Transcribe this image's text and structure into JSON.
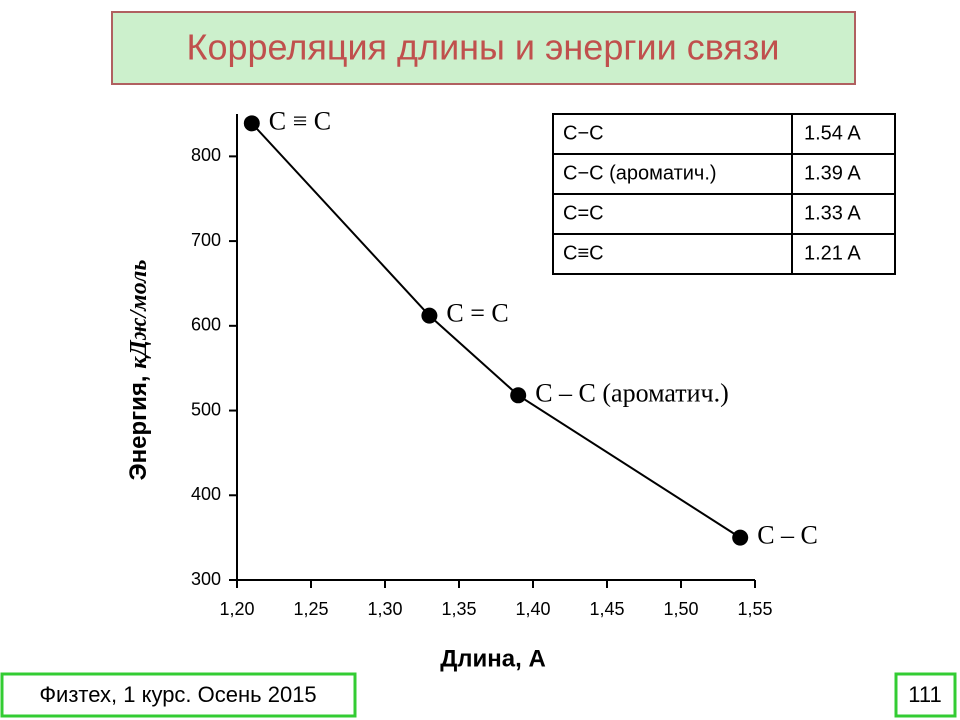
{
  "slide_title": "Корреляция длины и энергии связи",
  "chart_data": {
    "type": "line",
    "x": [
      1.21,
      1.33,
      1.39,
      1.54
    ],
    "values": [
      839,
      612,
      518,
      350
    ],
    "point_labels": [
      "C ≡ C",
      "C = C",
      "C – C (ароматич.)",
      "C – C"
    ],
    "color": "#000000",
    "xlabel": "Длина, А",
    "ylabel": [
      "Энергия,",
      "кДж/моль"
    ],
    "xlim": [
      1.2,
      1.55
    ],
    "xticks": [
      {
        "value": 1.2,
        "label": "1,20"
      },
      {
        "value": 1.25,
        "label": "1,25"
      },
      {
        "value": 1.3,
        "label": "1,30"
      },
      {
        "value": 1.35,
        "label": "1,35"
      },
      {
        "value": 1.4,
        "label": "1,40"
      },
      {
        "value": 1.45,
        "label": "1,45"
      },
      {
        "value": 1.5,
        "label": "1,50"
      },
      {
        "value": 1.55,
        "label": "1,55"
      }
    ],
    "ylim": [
      300,
      850
    ],
    "yticks": [
      300,
      400,
      500,
      600,
      700,
      800
    ]
  },
  "table": {
    "rows": [
      [
        "C−C",
        "1.54 A"
      ],
      [
        "C−C (ароматич.)",
        "1.39 A"
      ],
      [
        "C=C",
        "1.33 A"
      ],
      [
        "C≡C",
        "1.21 A"
      ]
    ]
  },
  "footer": "Физтех, 1 курс. Осень 2015",
  "page_number": "111"
}
